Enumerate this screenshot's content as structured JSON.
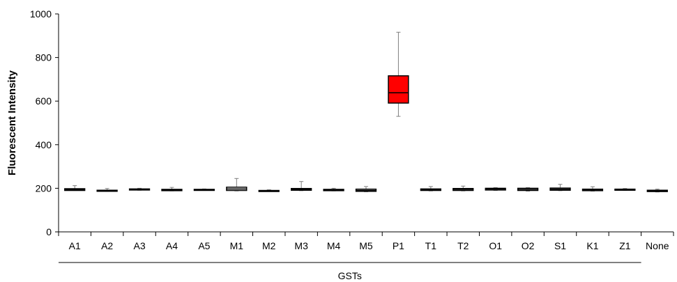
{
  "chart_data": {
    "type": "box",
    "ylabel": "Fluorescent Intensity",
    "ylim": [
      0,
      1000
    ],
    "yticks": [
      "0",
      "200",
      "400",
      "600",
      "800",
      "1000"
    ],
    "grid": false,
    "legend": "none",
    "group_label": "GSTs",
    "categories": [
      "A1",
      "A2",
      "A3",
      "A4",
      "A5",
      "M1",
      "M2",
      "M3",
      "M4",
      "M5",
      "P1",
      "T1",
      "T2",
      "O1",
      "O2",
      "S1",
      "K1",
      "Z1",
      "None"
    ],
    "boxes": [
      {
        "min": 190,
        "q1": 190,
        "median": 194,
        "q3": 198,
        "max": 212
      },
      {
        "min": 186,
        "q1": 187,
        "median": 189,
        "q3": 191,
        "max": 199
      },
      {
        "min": 191,
        "q1": 192,
        "median": 195,
        "q3": 197,
        "max": 200
      },
      {
        "min": 188,
        "q1": 189,
        "median": 192,
        "q3": 195,
        "max": 204
      },
      {
        "min": 190,
        "q1": 191,
        "median": 193,
        "q3": 195,
        "max": 197
      },
      {
        "min": 188,
        "q1": 190,
        "median": 197,
        "q3": 205,
        "max": 245
      },
      {
        "min": 186,
        "q1": 187,
        "median": 189,
        "q3": 190,
        "max": 193
      },
      {
        "min": 189,
        "q1": 191,
        "median": 195,
        "q3": 199,
        "max": 231
      },
      {
        "min": 188,
        "q1": 189,
        "median": 192,
        "q3": 195,
        "max": 200
      },
      {
        "min": 184,
        "q1": 186,
        "median": 190,
        "q3": 196,
        "max": 208
      },
      {
        "min": 530,
        "q1": 591,
        "median": 638,
        "q3": 716,
        "max": 916
      },
      {
        "min": 188,
        "q1": 190,
        "median": 194,
        "q3": 197,
        "max": 208
      },
      {
        "min": 188,
        "q1": 190,
        "median": 195,
        "q3": 199,
        "max": 210
      },
      {
        "min": 190,
        "q1": 192,
        "median": 197,
        "q3": 200,
        "max": 203
      },
      {
        "min": 187,
        "q1": 190,
        "median": 195,
        "q3": 200,
        "max": 203
      },
      {
        "min": 189,
        "q1": 191,
        "median": 196,
        "q3": 201,
        "max": 218
      },
      {
        "min": 187,
        "q1": 189,
        "median": 193,
        "q3": 196,
        "max": 207
      },
      {
        "min": 190,
        "q1": 191,
        "median": 194,
        "q3": 196,
        "max": 199
      },
      {
        "min": 183,
        "q1": 185,
        "median": 188,
        "q3": 191,
        "max": 196
      }
    ],
    "colors": {
      "box_fill": "#ffffff",
      "highlight_fill": "#ff0000",
      "stroke": "#000000",
      "whisker": "#7f7f7f"
    },
    "highlight": [
      "P1"
    ]
  }
}
